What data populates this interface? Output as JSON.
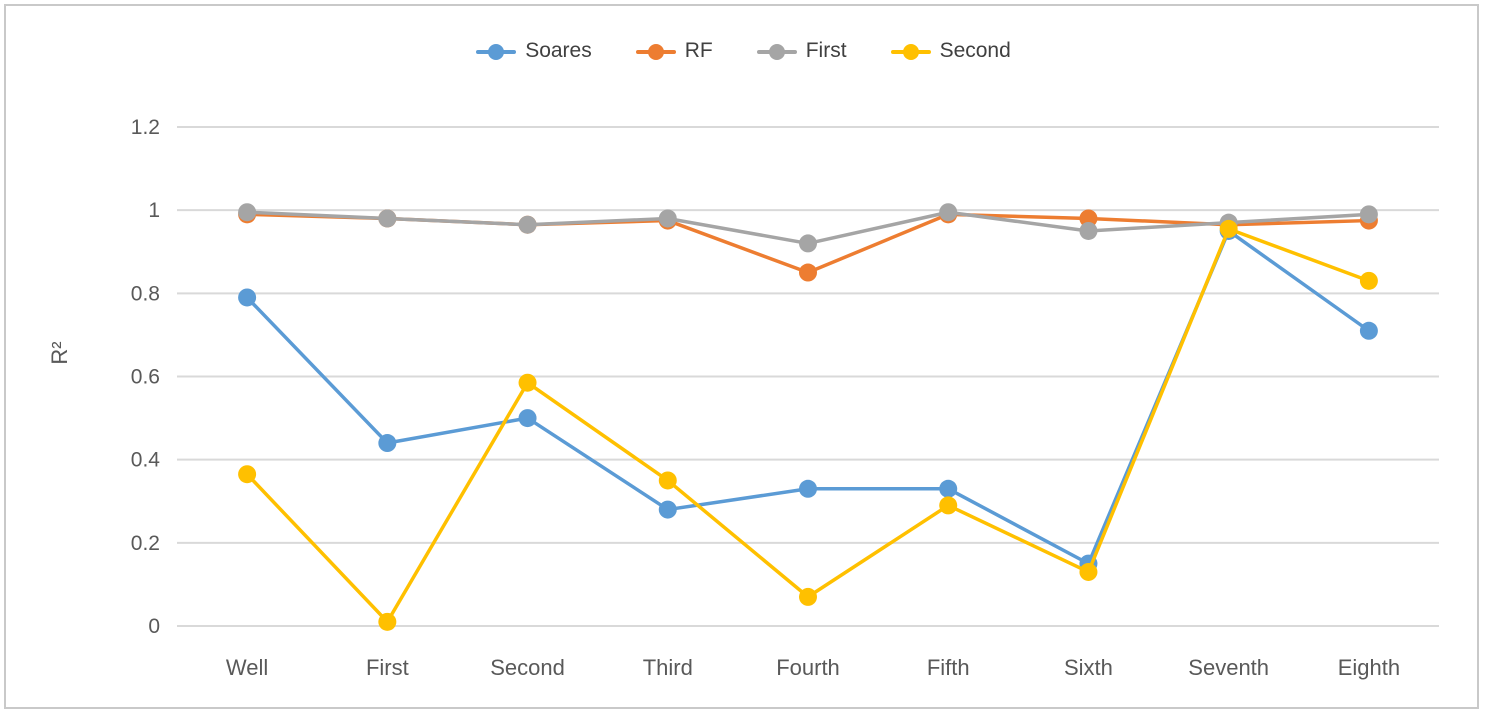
{
  "chart_data": {
    "type": "line",
    "title": "",
    "xlabel": "",
    "ylabel": "R²",
    "categories": [
      "Well",
      "First",
      "Second",
      "Third",
      "Fourth",
      "Fifth",
      "Sixth",
      "Seventh",
      "Eighth"
    ],
    "series": [
      {
        "name": "Soares",
        "color": "#5B9BD5",
        "values": [
          0.79,
          0.44,
          0.5,
          0.28,
          0.33,
          0.33,
          0.15,
          0.95,
          0.71
        ]
      },
      {
        "name": "RF",
        "color": "#ED7D31",
        "values": [
          0.99,
          0.98,
          0.965,
          0.975,
          0.85,
          0.99,
          0.98,
          0.965,
          0.975
        ]
      },
      {
        "name": "First",
        "color": "#A5A5A5",
        "values": [
          0.995,
          0.98,
          0.965,
          0.98,
          0.92,
          0.995,
          0.95,
          0.97,
          0.99
        ]
      },
      {
        "name": "Second",
        "color": "#FFC000",
        "values": [
          0.365,
          0.01,
          0.585,
          0.35,
          0.07,
          0.29,
          0.13,
          0.955,
          0.83
        ]
      }
    ],
    "ylim": [
      0,
      1.2
    ],
    "yticks": [
      {
        "value": 0,
        "label": "0"
      },
      {
        "value": 0.2,
        "label": "0.2"
      },
      {
        "value": 0.4,
        "label": "0.4"
      },
      {
        "value": 0.6,
        "label": "0.6"
      },
      {
        "value": 0.8,
        "label": "0.8"
      },
      {
        "value": 1,
        "label": "1"
      },
      {
        "value": 1.2,
        "label": "1.2"
      }
    ],
    "grid": "horizontal",
    "legend_position": "top-center",
    "colors": {
      "gridline": "#D9D9D9",
      "tick_text": "#595959",
      "legend_text": "#404040",
      "frame_border": "#C9C9C9",
      "background": "#FFFFFF"
    }
  }
}
